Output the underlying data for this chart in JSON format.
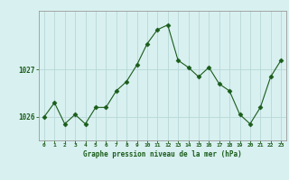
{
  "x": [
    0,
    1,
    2,
    3,
    4,
    5,
    6,
    7,
    8,
    9,
    10,
    11,
    12,
    13,
    14,
    15,
    16,
    17,
    18,
    19,
    20,
    21,
    22,
    23
  ],
  "y": [
    1026.0,
    1026.3,
    1025.85,
    1026.05,
    1025.85,
    1026.2,
    1026.2,
    1026.55,
    1026.75,
    1027.1,
    1027.55,
    1027.85,
    1027.95,
    1027.2,
    1027.05,
    1026.85,
    1027.05,
    1026.7,
    1026.55,
    1026.05,
    1025.85,
    1026.2,
    1026.85,
    1027.2
  ],
  "line_color": "#1a5c1a",
  "marker": "D",
  "markersize": 2.5,
  "background_color": "#d8f0f0",
  "grid_color": "#b8d8d8",
  "xlabel": "Graphe pression niveau de la mer (hPa)",
  "xlabel_color": "#1a5c1a",
  "tick_color": "#1a5c1a",
  "yticks": [
    1026,
    1027
  ],
  "ylim": [
    1025.5,
    1028.25
  ],
  "xlim": [
    -0.5,
    23.5
  ],
  "figsize": [
    3.2,
    2.0
  ],
  "dpi": 100
}
